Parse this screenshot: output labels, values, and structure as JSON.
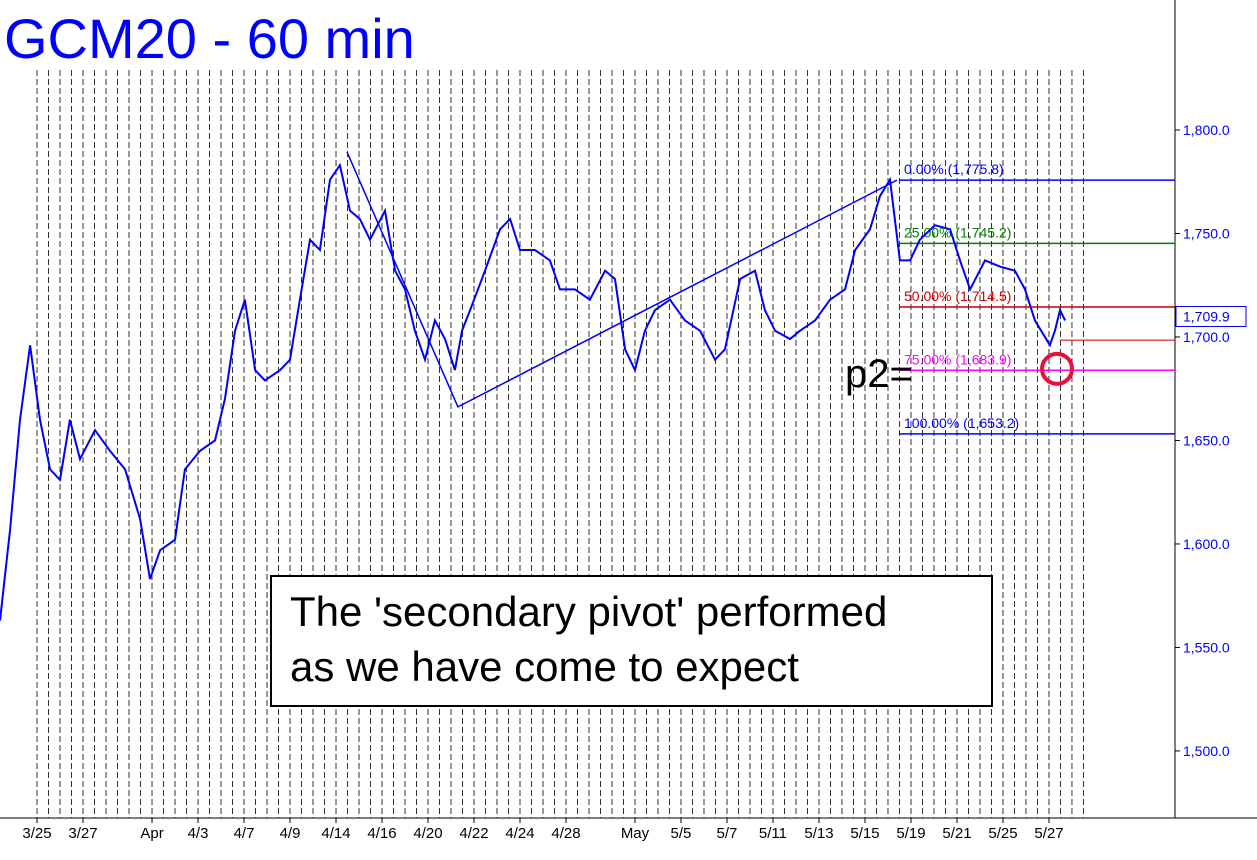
{
  "chart_data": {
    "type": "line",
    "title": "GCM20 - 60 min",
    "color": "#0000ff",
    "x": [
      -1.61,
      -1.17,
      -0.74,
      -0.3,
      0.13,
      0.57,
      1.0,
      1.43,
      1.87,
      2.52,
      3.17,
      3.83,
      4.48,
      4.91,
      5.35,
      6.0,
      6.43,
      7.09,
      7.74,
      8.17,
      8.61,
      9.04,
      9.48,
      9.91,
      10.57,
      11.0,
      11.43,
      11.87,
      12.3,
      12.74,
      13.17,
      13.61,
      14.04,
      14.48,
      15.13,
      15.57,
      16.0,
      16.43,
      16.87,
      17.3,
      17.74,
      18.17,
      18.48,
      18.83,
      19.48,
      20.13,
      20.57,
      21.0,
      21.65,
      22.3,
      22.74,
      23.39,
      24.04,
      24.7,
      25.13,
      25.57,
      26.0,
      26.43,
      26.87,
      27.52,
      28.17,
      28.83,
      29.48,
      29.91,
      30.57,
      31.22,
      31.65,
      32.09,
      32.74,
      33.17,
      33.83,
      34.48,
      35.13,
      35.57,
      36.22,
      36.65,
      37.09,
      37.52,
      37.96,
      38.39,
      39.04,
      39.7,
      40.13,
      40.57,
      41.22,
      41.87,
      42.52,
      42.96,
      43.39,
      44.04,
      44.26,
      44.48,
      44.7
    ],
    "values": [
      1563,
      1607,
      1660,
      1696,
      1660,
      1636,
      1631,
      1660,
      1641,
      1655,
      1645,
      1636,
      1612,
      1583,
      1597,
      1602,
      1636,
      1645,
      1650,
      1670,
      1703,
      1718,
      1684,
      1679,
      1684,
      1689,
      1718,
      1747,
      1742,
      1776,
      1783,
      1761,
      1757,
      1747,
      1761,
      1732,
      1723,
      1703,
      1689,
      1708,
      1699,
      1684,
      1703,
      1713,
      1732,
      1752,
      1757,
      1742,
      1742,
      1737,
      1723,
      1723,
      1718,
      1732,
      1728,
      1694,
      1684,
      1703,
      1713,
      1718,
      1708,
      1703,
      1689,
      1694,
      1728,
      1732,
      1713,
      1703,
      1699,
      1703,
      1708,
      1718,
      1723,
      1742,
      1752,
      1768,
      1776,
      1737,
      1737,
      1747,
      1754,
      1752,
      1737,
      1723,
      1737,
      1734,
      1732,
      1723,
      1708,
      1696,
      1703,
      1713,
      1708
    ],
    "xlim": [
      -1.61,
      49.48
    ],
    "ylim": [
      1467.6,
      1862.8
    ],
    "xticks": [
      {
        "value": 0,
        "label": "3/25"
      },
      {
        "value": 2,
        "label": "3/27"
      },
      {
        "value": 5,
        "label": "Apr"
      },
      {
        "value": 7,
        "label": "4/3"
      },
      {
        "value": 9,
        "label": "4/7"
      },
      {
        "value": 11,
        "label": "4/9"
      },
      {
        "value": 13,
        "label": "4/14"
      },
      {
        "value": 15,
        "label": "4/16"
      },
      {
        "value": 17,
        "label": "4/20"
      },
      {
        "value": 19,
        "label": "4/22"
      },
      {
        "value": 21,
        "label": "4/24"
      },
      {
        "value": 23,
        "label": "4/28"
      },
      {
        "value": 26,
        "label": "May"
      },
      {
        "value": 28,
        "label": "5/5"
      },
      {
        "value": 30,
        "label": "5/7"
      },
      {
        "value": 32,
        "label": "5/11"
      },
      {
        "value": 34,
        "label": "5/13"
      },
      {
        "value": 36,
        "label": "5/15"
      },
      {
        "value": 38,
        "label": "5/19"
      },
      {
        "value": 40,
        "label": "5/21"
      },
      {
        "value": 42,
        "label": "5/25"
      },
      {
        "value": 44,
        "label": "5/27"
      }
    ],
    "yticks": [
      {
        "value": 1500,
        "label": "1,500.0"
      },
      {
        "value": 1550,
        "label": "1,550.0"
      },
      {
        "value": 1600,
        "label": "1,600.0"
      },
      {
        "value": 1650,
        "label": "1,650.0"
      },
      {
        "value": 1700,
        "label": "1,700.0"
      },
      {
        "value": 1750,
        "label": "1,750.0"
      },
      {
        "value": 1800,
        "label": "1,800.0"
      }
    ],
    "fib_levels": [
      {
        "value": 1775.8,
        "label": "0.00% (1,775.8)",
        "color": "#0000ff"
      },
      {
        "value": 1745.2,
        "label": "25.00% (1,745.2)",
        "color": "#008000"
      },
      {
        "value": 1714.5,
        "label": "50.00% (1,714.5)",
        "color": "#cc0000"
      },
      {
        "value": 1683.9,
        "label": "75.00% (1,683.9)",
        "color": "#ff00ff"
      },
      {
        "value": 1653.2,
        "label": "100.00% (1,653.2)",
        "color": "#0000ff"
      }
    ],
    "fib_start": 37.48,
    "pivot_line": {
      "x": [
        13.48,
        18.3,
        37.39
      ],
      "y": [
        1789.4,
        1666.2,
        1775.8
      ]
    },
    "target_line": {
      "x": 44.48,
      "value": 1698.5,
      "color": "#cc0000"
    },
    "pivot_marker": {
      "x": 44.35,
      "value": 1684.6,
      "label": "p2=",
      "color": "#e8103a"
    },
    "last_price": {
      "value": 1709.9,
      "label": "1,709.9"
    },
    "annotation": [
      "The 'secondary pivot' performed",
      "as we have come to expect"
    ]
  }
}
